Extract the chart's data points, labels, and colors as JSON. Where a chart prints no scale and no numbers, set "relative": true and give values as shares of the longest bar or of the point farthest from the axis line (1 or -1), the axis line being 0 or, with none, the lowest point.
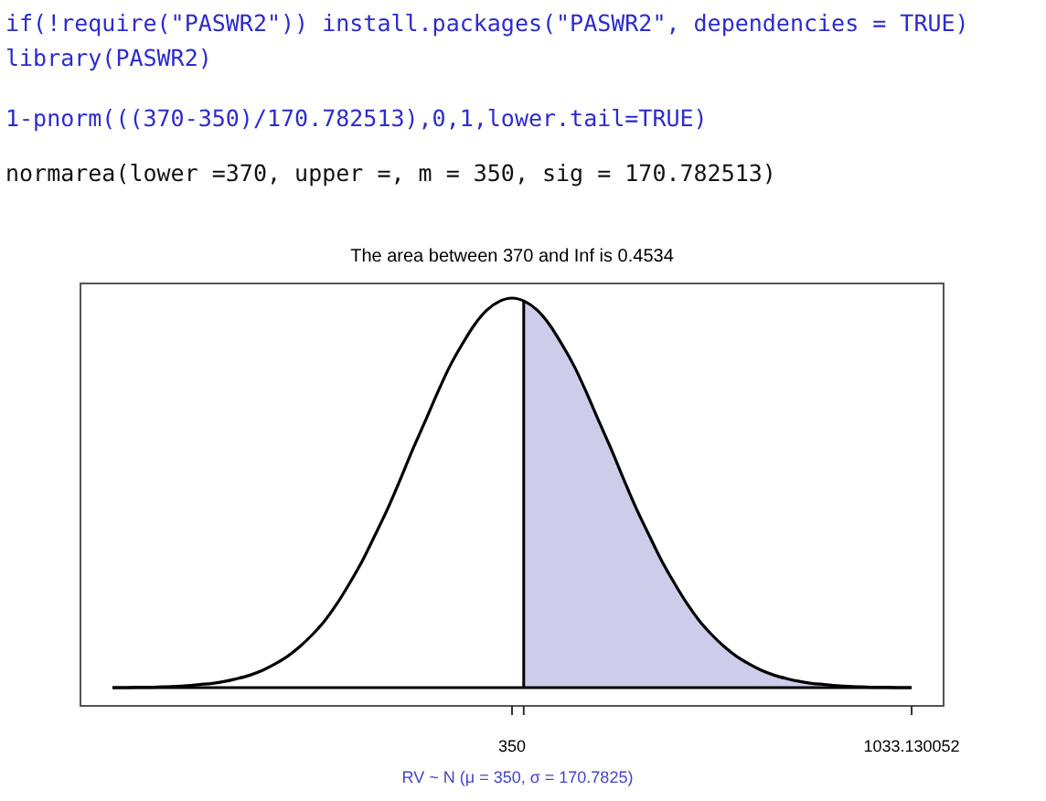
{
  "chart_data": {
    "type": "line",
    "title": "The area between 370 and Inf is 0.4534",
    "xlabel": "RV ~ N (μ = 350, σ = 170.7825)",
    "annotations": [
      "if(!require(\"PASWR2\")) install.packages(\"PASWR2\", dependencies = TRUE)",
      "library(PASWR2)",
      "1-pnorm(((370-350)/170.782513),0,1,lower.tail=TRUE)",
      "normarea(lower =370, upper =, m = 350, sig = 170.782513)"
    ],
    "relative": true,
    "xlim": [
      -387.78,
      1087.78
    ],
    "xticks": [
      350,
      {
        "value": 370,
        "label": null
      },
      1033.130052
    ],
    "series": [
      {
        "type": "area",
        "color": "#cdcdeb",
        "x": [
          370,
          393,
          414,
          435,
          457,
          478,
          499,
          521,
          542,
          563,
          585,
          606,
          628,
          649,
          670,
          692,
          713,
          734,
          756,
          777,
          798,
          820,
          841,
          862,
          884,
          905,
          926,
          948,
          969,
          990,
          1012,
          1033.13
        ],
        "values": [
          0.993,
          0.969,
          0.932,
          0.882,
          0.823,
          0.755,
          0.682,
          0.607,
          0.531,
          0.458,
          0.389,
          0.325,
          0.267,
          0.216,
          0.172,
          0.135,
          0.105,
          0.08,
          0.06,
          0.044,
          0.032,
          0.023,
          0.016,
          0.011,
          0.008,
          0.005,
          0.003,
          0.002,
          0.001,
          0.001,
          0.0,
          0.0
        ]
      },
      {
        "type": "line",
        "color": "#000000",
        "x": [
          -333.13,
          -312,
          -290,
          -269,
          -248,
          -226,
          -205,
          -184,
          -162,
          -141,
          -120,
          -98,
          -77,
          -56,
          -34,
          -13,
          8,
          30,
          51,
          72,
          94,
          115,
          137,
          158,
          179,
          201,
          222,
          243,
          265,
          286,
          307,
          329,
          350,
          371,
          393,
          414,
          435,
          457,
          478,
          499,
          521,
          542,
          563,
          585,
          606,
          628,
          649,
          670,
          692,
          713,
          734,
          756,
          777,
          798,
          820,
          841,
          862,
          884,
          905,
          926,
          948,
          969,
          990,
          1012,
          1033.13
        ],
        "values": [
          0.0,
          0.0,
          0.001,
          0.001,
          0.002,
          0.003,
          0.005,
          0.008,
          0.011,
          0.016,
          0.023,
          0.032,
          0.044,
          0.06,
          0.08,
          0.105,
          0.135,
          0.172,
          0.216,
          0.267,
          0.325,
          0.389,
          0.458,
          0.531,
          0.607,
          0.682,
          0.755,
          0.823,
          0.882,
          0.932,
          0.969,
          0.992,
          1,
          0.992,
          0.969,
          0.932,
          0.882,
          0.823,
          0.755,
          0.682,
          0.607,
          0.531,
          0.458,
          0.389,
          0.325,
          0.267,
          0.216,
          0.172,
          0.135,
          0.105,
          0.08,
          0.06,
          0.044,
          0.032,
          0.023,
          0.016,
          0.011,
          0.008,
          0.005,
          0.003,
          0.002,
          0.001,
          0.001,
          0.0,
          0.0
        ]
      }
    ]
  }
}
